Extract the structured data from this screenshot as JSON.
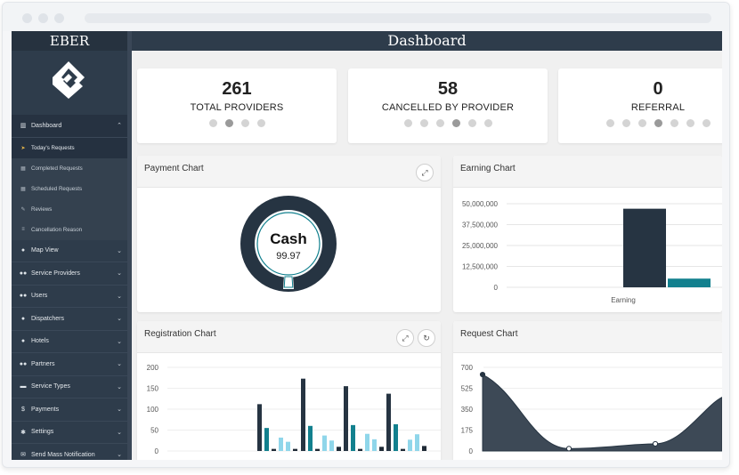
{
  "sidebar": {
    "brand": "EBER",
    "menu": [
      {
        "label": "Dashboard",
        "icon": "bar-chart-icon",
        "expanded": true
      },
      {
        "label": "Today's Requests",
        "icon": "paper-plane-icon",
        "sub": true,
        "current": true
      },
      {
        "label": "Completed Requests",
        "icon": "calendar-icon",
        "sub": true
      },
      {
        "label": "Scheduled Requests",
        "icon": "calendar-icon",
        "sub": true
      },
      {
        "label": "Reviews",
        "icon": "pencil-icon",
        "sub": true
      },
      {
        "label": "Cancellation Reason",
        "icon": "list-icon",
        "sub": true
      },
      {
        "label": "Map View",
        "icon": "map-marker-icon"
      },
      {
        "label": "Service Providers",
        "icon": "users-icon"
      },
      {
        "label": "Users",
        "icon": "users-icon"
      },
      {
        "label": "Dispatchers",
        "icon": "user-icon"
      },
      {
        "label": "Hotels",
        "icon": "user-icon"
      },
      {
        "label": "Partners",
        "icon": "users-icon"
      },
      {
        "label": "Service Types",
        "icon": "car-icon"
      },
      {
        "label": "Payments",
        "icon": "dollar-icon"
      },
      {
        "label": "Settings",
        "icon": "cogs-icon"
      },
      {
        "label": "Send Mass Notification",
        "icon": "send-icon"
      }
    ]
  },
  "header": {
    "title": "Dashboard"
  },
  "stats": [
    {
      "value": "261",
      "label": "TOTAL PROVIDERS",
      "active_dot": 1,
      "dot_count": 4
    },
    {
      "value": "58",
      "label": "CANCELLED BY PROVIDER",
      "active_dot": 3,
      "dot_count": 6
    },
    {
      "value": "0",
      "label": "REFERRAL",
      "active_dot": 3,
      "dot_count": 7
    }
  ],
  "panels": {
    "payment": {
      "title": "Payment Chart"
    },
    "earning": {
      "title": "Earning Chart"
    },
    "registration": {
      "title": "Registration Chart"
    },
    "request": {
      "title": "Request Chart"
    }
  },
  "colors": {
    "navy": "#263442",
    "teal": "#12808e",
    "cyan": "#8fd6ea",
    "dark": "#1f2a36",
    "sidebar": "#2e3c4b"
  },
  "chart_data": [
    {
      "id": "payment",
      "type": "pie",
      "title": "Payment Chart",
      "slices": [
        {
          "label": "Cash",
          "value": 99.97
        },
        {
          "label": "",
          "value": 0.03
        }
      ],
      "center_label": "Cash",
      "center_value": "99.97"
    },
    {
      "id": "earning",
      "type": "bar",
      "title": "Earning Chart",
      "categories": [
        "Earning"
      ],
      "series": [
        {
          "values": [
            47000000
          ]
        },
        {
          "values": [
            5200000
          ]
        }
      ],
      "yticks": [
        "0",
        "12,500,000",
        "25,000,000",
        "37,500,000",
        "50,000,000"
      ],
      "ylim": [
        0,
        50000000
      ]
    },
    {
      "id": "registration",
      "type": "bar",
      "title": "Registration Chart",
      "yticks": [
        "0",
        "50",
        "100",
        "150",
        "200"
      ],
      "ylim": [
        0,
        200
      ],
      "groups": [
        {
          "values": [
            112,
            55,
            5,
            32,
            22,
            5
          ]
        },
        {
          "values": [
            173,
            60,
            5,
            37,
            25,
            10
          ]
        },
        {
          "values": [
            155,
            62,
            5,
            41,
            28,
            10
          ]
        },
        {
          "values": [
            137,
            64,
            5,
            27,
            40,
            12
          ]
        }
      ]
    },
    {
      "id": "request",
      "type": "area",
      "title": "Request Chart",
      "yticks": [
        "0",
        "175",
        "350",
        "525",
        "700"
      ],
      "ylim": [
        0,
        700
      ],
      "points": [
        640,
        20,
        60
      ]
    }
  ]
}
